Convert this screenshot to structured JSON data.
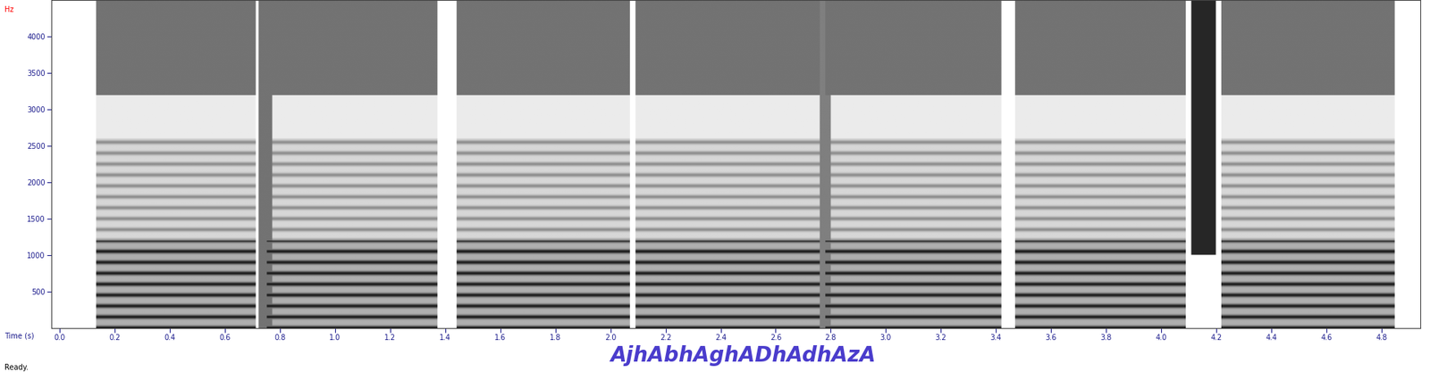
{
  "chart_data": {
    "type": "spectrogram",
    "y_label": "Hz",
    "x_label": "Time (s)",
    "transcription": "AjhAbhAghADhAdhAzA",
    "status": "Ready.",
    "xlim": [
      -0.03,
      4.94
    ],
    "ylim": [
      0,
      4500
    ],
    "xticks": [
      {
        "value": 0,
        "label": "0.0"
      },
      0.2,
      0.4,
      0.6,
      0.8,
      {
        "value": 1,
        "label": "1.0"
      },
      1.2,
      1.4,
      1.6,
      1.8,
      {
        "value": 2,
        "label": "2.0"
      },
      2.2,
      2.4,
      2.6,
      2.8,
      {
        "value": 3,
        "label": "3.0"
      },
      3.2,
      3.4,
      3.6,
      3.8,
      {
        "value": 4,
        "label": "4.0"
      },
      4.2,
      4.4,
      4.6,
      4.8
    ],
    "yticks": [
      500,
      1000,
      1500,
      2000,
      2500,
      3000,
      3500,
      4000
    ],
    "f0": 150,
    "segments": [
      {
        "start": 0.13,
        "end": 0.71
      },
      {
        "start": 0.75,
        "end": 1.37
      },
      {
        "start": 1.44,
        "end": 2.07
      },
      {
        "start": 2.09,
        "end": 2.76
      },
      {
        "start": 2.78,
        "end": 3.42
      },
      {
        "start": 3.47,
        "end": 4.09
      },
      {
        "start": 4.22,
        "end": 4.85
      }
    ],
    "bands": [
      {
        "low": 0,
        "high": 1200,
        "level": 0.9,
        "harmonic": true
      },
      {
        "low": 1200,
        "high": 2600,
        "level": 0.45,
        "harmonic": true
      },
      {
        "low": 2600,
        "high": 3200,
        "level": 0.08,
        "harmonic": false
      },
      {
        "low": 3200,
        "high": 4500,
        "level": 0.55,
        "harmonic": false
      }
    ],
    "frication": [
      {
        "start": 0.72,
        "end": 0.77,
        "low": 0,
        "high": 4500,
        "level": 0.55
      },
      {
        "start": 2.76,
        "end": 2.8,
        "low": 0,
        "high": 4500,
        "level": 0.5
      },
      {
        "start": 4.11,
        "end": 4.2,
        "low": 1000,
        "high": 4500,
        "level": 0.85
      }
    ]
  }
}
